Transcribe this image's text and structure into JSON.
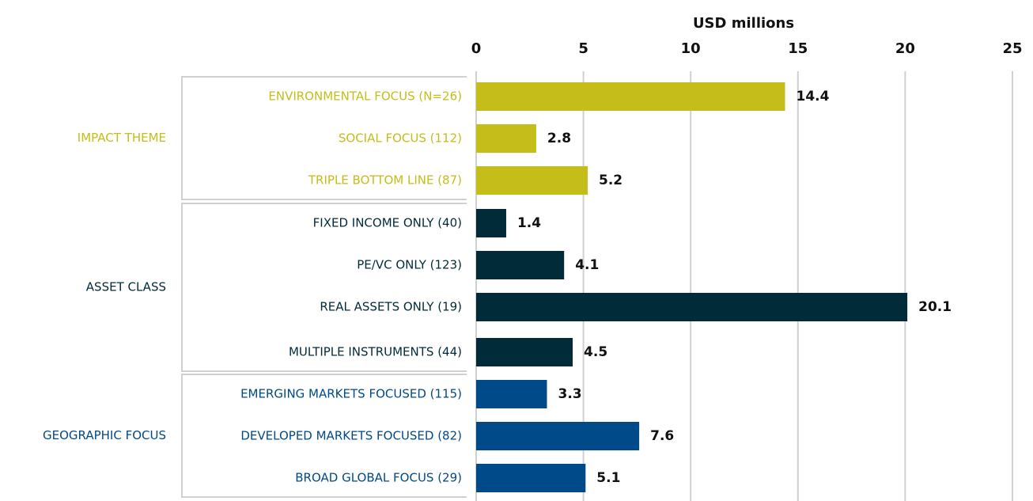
{
  "chart_data": {
    "type": "bar",
    "orientation": "horizontal",
    "xlabel": "USD millions",
    "xlim": [
      0,
      25
    ],
    "xticks": [
      0,
      5,
      10,
      15,
      20,
      25
    ],
    "grid": true,
    "groups": [
      {
        "name": "IMPACT THEME",
        "color": "#c4bd1a",
        "categories": [
          "ENVIRONMENTAL FOCUS (N=26)",
          "SOCIAL FOCUS (112)",
          "TRIPLE BOTTOM LINE (87)"
        ],
        "values": [
          14.4,
          2.8,
          5.2
        ]
      },
      {
        "name": "ASSET CLASS",
        "color": "#022b3a",
        "categories": [
          "FIXED INCOME ONLY (40)",
          "PE/VC ONLY (123)",
          "REAL ASSETS ONLY (19)",
          "MULTIPLE INSTRUMENTS (44)"
        ],
        "values": [
          1.4,
          4.1,
          20.1,
          4.5
        ]
      },
      {
        "name": "GEOGRAPHIC FOCUS",
        "color": "#004a8a",
        "categories": [
          "EMERGING MARKETS FOCUSED (115)",
          "DEVELOPED MARKETS FOCUSED (82)",
          "BROAD GLOBAL FOCUS (29)"
        ],
        "values": [
          3.3,
          7.6,
          5.1
        ]
      }
    ]
  }
}
